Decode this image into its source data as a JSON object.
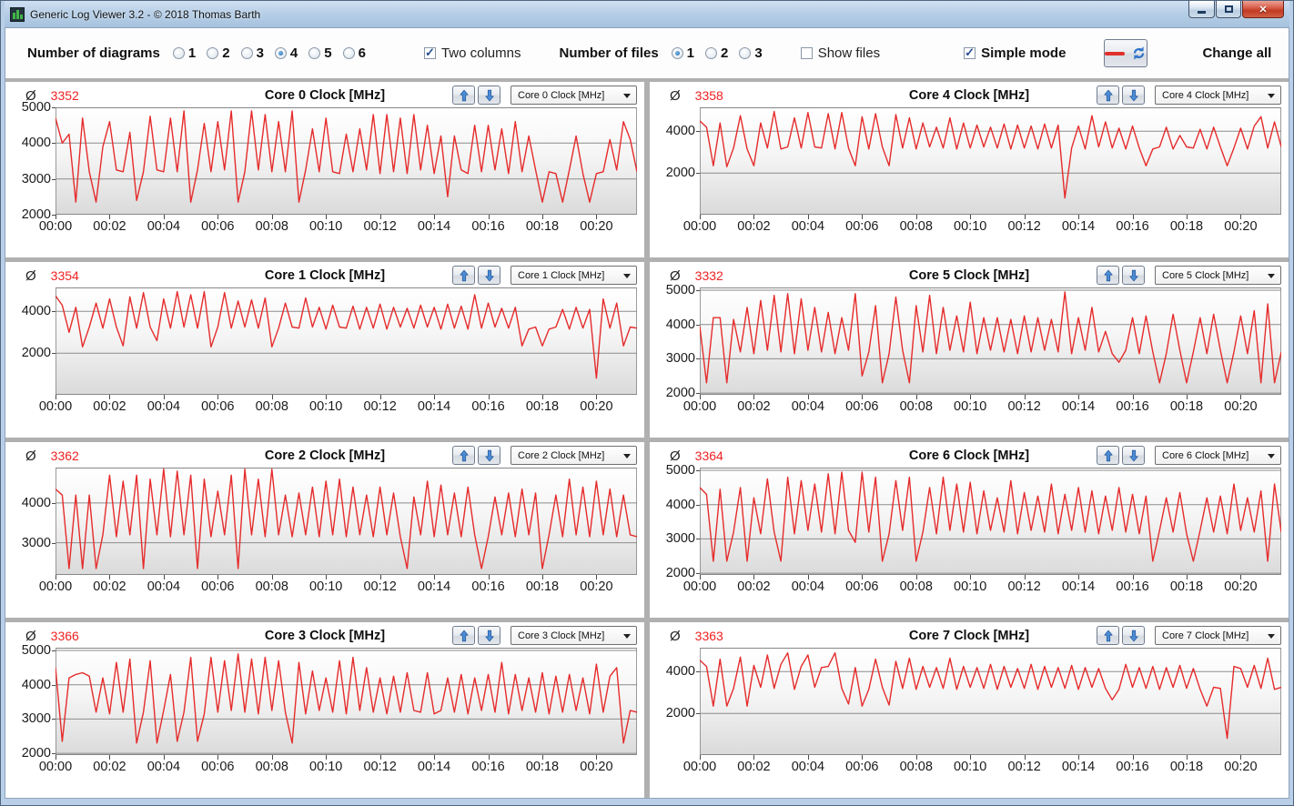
{
  "window": {
    "title": "Generic Log Viewer 3.2 - © 2018 Thomas Barth"
  },
  "icons": {
    "app": "green-log-bars",
    "minimize": "–",
    "maximize": "▢",
    "close": "✕",
    "legend_line": "red-dash",
    "refresh": "⟳",
    "move_up": "↑",
    "move_down": "↓",
    "dropdown_arrow": "▼"
  },
  "colors": {
    "line_red": "#e62b2b",
    "avg_red": "#ee2222",
    "arrow_blue": "#4d8ed8",
    "titlebar_blue": "#b7cfe7",
    "separator_gray": "#b0b0b0"
  },
  "toolbar": {
    "diagrams_label": "Number of diagrams",
    "diagram_options": [
      "1",
      "2",
      "3",
      "4",
      "5",
      "6"
    ],
    "diagrams_selected": "4",
    "two_columns_label": "Two columns",
    "two_columns_checked": true,
    "files_label": "Number of files",
    "file_options": [
      "1",
      "2",
      "3"
    ],
    "files_selected": "1",
    "show_files_label": "Show files",
    "show_files_checked": false,
    "simple_mode_label": "Simple mode",
    "simple_mode_checked": true,
    "change_all_label": "Change all"
  },
  "main": {
    "avg_symbol": "Ø",
    "x_span_min": 21.5,
    "x_tick_minutes": [
      0,
      2,
      4,
      6,
      8,
      10,
      12,
      14,
      16,
      18,
      20
    ],
    "x_ticks": [
      "00:00",
      "00:02",
      "00:04",
      "00:06",
      "00:08",
      "00:10",
      "00:12",
      "00:14",
      "00:16",
      "00:18",
      "00:20"
    ],
    "panels": [
      {
        "type": "line",
        "title": "Core 0 Clock [MHz]",
        "avg": "3352",
        "ylim": [
          2000,
          5000
        ],
        "yticks": [
          5000,
          4000,
          3000,
          2000
        ],
        "values": [
          4700,
          4000,
          4250,
          2350,
          4700,
          3200,
          2350,
          3900,
          4600,
          3250,
          3200,
          4300,
          2400,
          3200,
          4750,
          3250,
          3200,
          4700,
          3200,
          4900,
          2350,
          3250,
          4550,
          3200,
          4600,
          3250,
          4900,
          2350,
          3200,
          4900,
          3250,
          4800,
          3200,
          4600,
          3200,
          4900,
          2350,
          3250,
          4400,
          3200,
          4700,
          3200,
          3150,
          4250,
          3200,
          4400,
          3250,
          4800,
          3150,
          4800,
          3200,
          4700,
          3150,
          4800,
          3250,
          4500,
          3150,
          4200,
          2500,
          4200,
          3250,
          3150,
          4500,
          3200,
          4500,
          3250,
          4400,
          3150,
          4600,
          3200,
          4200,
          3250,
          2350,
          3200,
          3150,
          2350,
          3250,
          4200,
          3150,
          2350,
          3150,
          3200,
          4100,
          3250,
          4600,
          4100,
          3200
        ]
      },
      {
        "type": "line",
        "title": "Core 4 Clock [MHz]",
        "avg": "3358",
        "ylim": [
          0,
          5150
        ],
        "yticks": [
          4000,
          2000
        ],
        "values": [
          4500,
          4200,
          2350,
          4400,
          2300,
          3200,
          4750,
          3150,
          2350,
          4400,
          3200,
          4950,
          3150,
          3250,
          4650,
          3200,
          4900,
          3250,
          3200,
          4850,
          3150,
          4900,
          3200,
          2350,
          4700,
          3150,
          4850,
          3250,
          2350,
          4800,
          3200,
          4650,
          3150,
          4400,
          3250,
          4200,
          3200,
          4650,
          3150,
          4400,
          3200,
          4300,
          3250,
          4200,
          3200,
          4350,
          3150,
          4300,
          3200,
          4250,
          3150,
          4350,
          3200,
          4300,
          800,
          3200,
          4250,
          3150,
          4750,
          3250,
          4450,
          3200,
          4150,
          3150,
          4250,
          3200,
          2350,
          3150,
          3250,
          4200,
          3150,
          3800,
          3250,
          3200,
          4100,
          3150,
          4200,
          3250,
          2350,
          3200,
          4150,
          3150,
          4250,
          4700,
          3200,
          4450,
          3250
        ]
      },
      {
        "type": "line",
        "title": "Core 1 Clock [MHz]",
        "avg": "3354",
        "ylim": [
          0,
          5150
        ],
        "yticks": [
          4000,
          2000
        ],
        "values": [
          4750,
          4300,
          3000,
          4200,
          2300,
          3250,
          4400,
          3200,
          4600,
          3250,
          2350,
          4700,
          3200,
          4900,
          3250,
          2600,
          4600,
          3200,
          4950,
          3250,
          4800,
          3200,
          4950,
          2300,
          3250,
          4900,
          3200,
          4500,
          3250,
          4550,
          3200,
          4650,
          2300,
          3200,
          4400,
          3250,
          3200,
          4650,
          3250,
          4200,
          3150,
          4300,
          3250,
          3200,
          4250,
          3150,
          4200,
          3200,
          4350,
          3150,
          4200,
          3250,
          4150,
          3200,
          4300,
          3250,
          4200,
          3150,
          4350,
          3200,
          4250,
          3150,
          4800,
          3200,
          4400,
          3250,
          4150,
          3200,
          4200,
          2350,
          3150,
          3250,
          2350,
          3150,
          3250,
          4100,
          3150,
          4200,
          3200,
          4100,
          800,
          4600,
          3200,
          4400,
          2350,
          3250,
          3200
        ]
      },
      {
        "type": "line",
        "title": "Core 5 Clock [MHz]",
        "avg": "3332",
        "ylim": [
          1950,
          5080
        ],
        "yticks": [
          5000,
          4000,
          3000,
          2000
        ],
        "values": [
          3950,
          2300,
          4200,
          4200,
          2300,
          4150,
          3200,
          4500,
          3150,
          4700,
          3250,
          4850,
          3200,
          4900,
          3150,
          4750,
          3250,
          4500,
          3200,
          4350,
          3150,
          4200,
          3250,
          4900,
          2500,
          3200,
          4550,
          2300,
          3150,
          4800,
          3250,
          2300,
          4550,
          3200,
          4850,
          3150,
          4500,
          3250,
          4250,
          3200,
          4650,
          3150,
          4200,
          3250,
          4200,
          3200,
          4150,
          3150,
          4250,
          3200,
          4200,
          3250,
          4150,
          3200,
          4950,
          3150,
          4200,
          3250,
          4500,
          3200,
          3800,
          3150,
          2900,
          3250,
          4200,
          3150,
          4250,
          3200,
          2300,
          3150,
          4300,
          3250,
          2300,
          3200,
          4200,
          3150,
          4300,
          3250,
          2300,
          3200,
          4250,
          3150,
          4400,
          2300,
          4600,
          2300,
          3200
        ]
      },
      {
        "type": "line",
        "title": "Core 2 Clock [MHz]",
        "avg": "3362",
        "ylim": [
          2190,
          4890
        ],
        "yticks": [
          4000,
          3000
        ],
        "values": [
          4350,
          4200,
          2350,
          4200,
          2350,
          4200,
          2350,
          3200,
          4700,
          3150,
          4550,
          3200,
          4700,
          2350,
          4600,
          3200,
          4850,
          3150,
          4800,
          3200,
          4700,
          2350,
          4600,
          3150,
          4300,
          3200,
          4700,
          2350,
          4850,
          3200,
          4600,
          3150,
          4850,
          3200,
          4200,
          3150,
          4250,
          3200,
          4400,
          3150,
          4550,
          3200,
          4600,
          3150,
          4400,
          3200,
          4200,
          3150,
          4400,
          3200,
          4250,
          3150,
          2350,
          4150,
          3200,
          4550,
          3150,
          4450,
          3200,
          4250,
          3150,
          4400,
          3200,
          2350,
          3150,
          4150,
          3200,
          4250,
          3150,
          4350,
          3200,
          4250,
          2350,
          3200,
          4200,
          3150,
          4600,
          3200,
          4400,
          3150,
          4550,
          3200,
          4350,
          3150,
          4200,
          3200,
          3150
        ]
      },
      {
        "type": "line",
        "title": "Core 6 Clock [MHz]",
        "avg": "3364",
        "ylim": [
          1950,
          5080
        ],
        "yticks": [
          5000,
          4000,
          3000,
          2000
        ],
        "values": [
          4500,
          4300,
          2350,
          4450,
          2350,
          3200,
          4500,
          2350,
          4200,
          3150,
          4750,
          3200,
          2350,
          4800,
          3150,
          4700,
          3250,
          4600,
          3200,
          4900,
          3150,
          4950,
          3250,
          2900,
          4950,
          3200,
          4800,
          2350,
          3150,
          4700,
          3250,
          4800,
          2350,
          3200,
          4500,
          3150,
          4800,
          3250,
          4600,
          3200,
          4650,
          3150,
          4400,
          3250,
          4200,
          3200,
          4700,
          3150,
          4350,
          3250,
          4250,
          3200,
          4600,
          3150,
          4300,
          3250,
          4500,
          3200,
          4400,
          3150,
          4250,
          3250,
          4500,
          3200,
          4300,
          3150,
          4250,
          2350,
          3250,
          4200,
          3200,
          4350,
          3150,
          2350,
          3250,
          4200,
          3200,
          4250,
          3150,
          4600,
          3250,
          4200,
          3200,
          4400,
          2350,
          4600,
          3200
        ]
      },
      {
        "type": "line",
        "title": "Core 3 Clock [MHz]",
        "avg": "3366",
        "ylim": [
          1950,
          5080
        ],
        "yticks": [
          5000,
          4000,
          3000,
          2000
        ],
        "values": [
          4500,
          2350,
          4200,
          4300,
          4350,
          4250,
          3200,
          4200,
          3150,
          4650,
          3200,
          4750,
          2300,
          3200,
          4700,
          2300,
          3250,
          4300,
          2350,
          3200,
          4800,
          2350,
          3150,
          4800,
          3200,
          4700,
          3250,
          4900,
          3200,
          4750,
          3150,
          4800,
          3250,
          4700,
          3200,
          2300,
          4650,
          3150,
          4400,
          3250,
          4200,
          3200,
          4700,
          3150,
          4800,
          3250,
          4500,
          3200,
          4200,
          3150,
          4250,
          3200,
          4350,
          3250,
          3200,
          4350,
          3150,
          3250,
          4200,
          3200,
          4300,
          3150,
          4200,
          3250,
          4300,
          3200,
          4650,
          3150,
          4300,
          3250,
          4200,
          3200,
          4350,
          3150,
          4250,
          3200,
          4300,
          3250,
          4200,
          3150,
          4600,
          3200,
          4250,
          4500,
          2300,
          3250,
          3200
        ]
      },
      {
        "type": "line",
        "title": "Core 7 Clock [MHz]",
        "avg": "3363",
        "ylim": [
          0,
          5150
        ],
        "yticks": [
          4000,
          2000
        ],
        "values": [
          4550,
          4250,
          2350,
          4600,
          2350,
          3200,
          4700,
          2350,
          4300,
          3250,
          4800,
          3200,
          4350,
          4900,
          3150,
          4250,
          4800,
          3250,
          4200,
          4250,
          4900,
          3200,
          2450,
          4200,
          2350,
          3150,
          4600,
          3250,
          2400,
          4500,
          3200,
          4650,
          3150,
          4250,
          3250,
          4200,
          3200,
          4650,
          3150,
          4250,
          3250,
          4200,
          3200,
          4350,
          3150,
          4250,
          3250,
          4150,
          3200,
          4350,
          3150,
          4250,
          3250,
          4200,
          3200,
          4300,
          3150,
          4200,
          3250,
          4150,
          3200,
          2650,
          3150,
          4350,
          3250,
          4200,
          3200,
          4250,
          3150,
          4200,
          3250,
          4300,
          3200,
          4150,
          3150,
          2350,
          3250,
          3200,
          800,
          4250,
          4150,
          3250,
          4300,
          3200,
          4650,
          3150,
          3250
        ]
      }
    ]
  }
}
